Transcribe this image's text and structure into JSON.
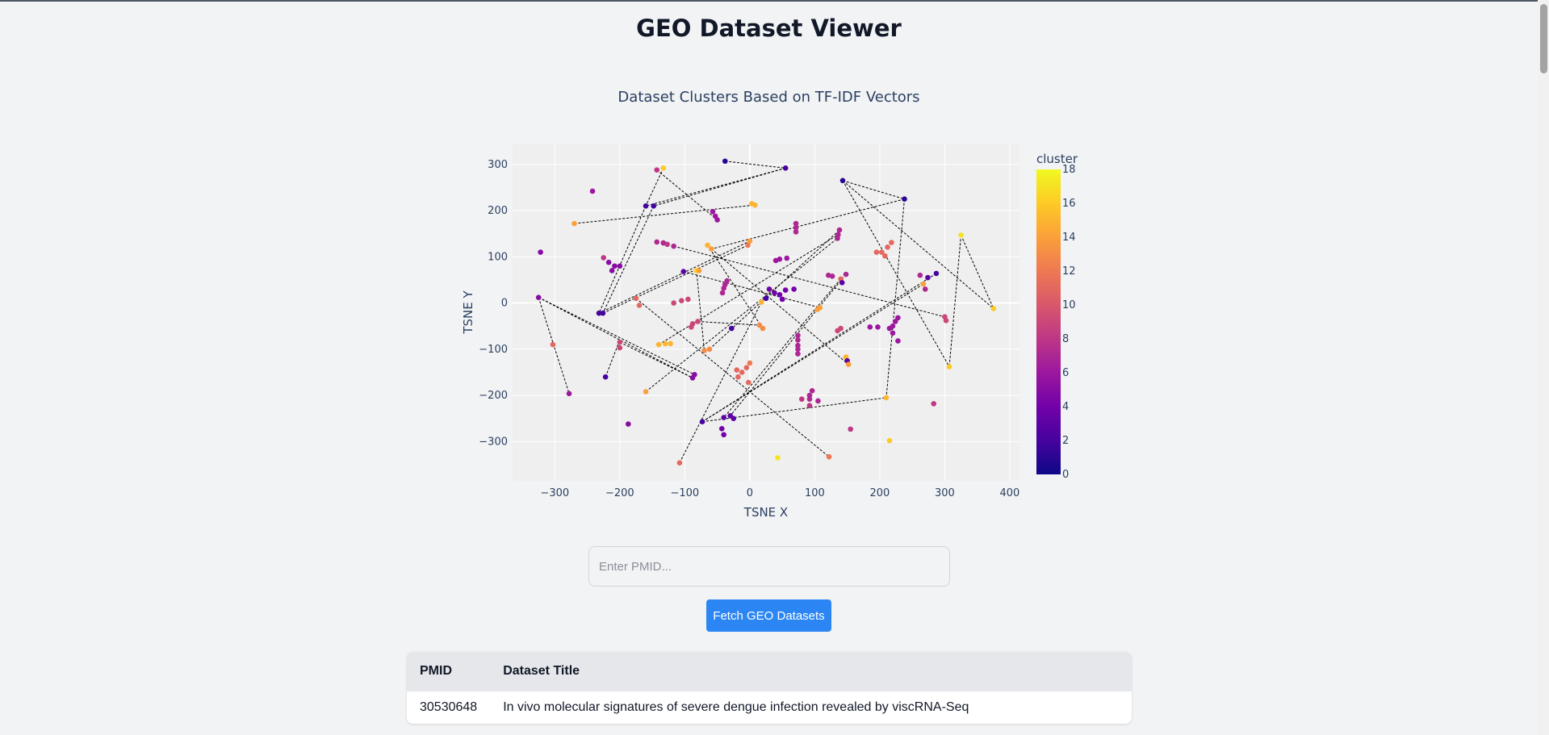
{
  "page": {
    "title": "GEO Dataset Viewer"
  },
  "search": {
    "placeholder": "Enter PMID...",
    "value": ""
  },
  "fetch_button": {
    "label": "Fetch GEO Datasets"
  },
  "table": {
    "headers": [
      "PMID",
      "Dataset Title"
    ],
    "rows": [
      {
        "pmid": "30530648",
        "title": "In vivo molecular signatures of severe dengue infection revealed by viscRNA-Seq"
      }
    ]
  },
  "chart_data": {
    "type": "scatter",
    "title": "Dataset Clusters Based on TF-IDF Vectors",
    "xlabel": "TSNE X",
    "ylabel": "TSNE Y",
    "xlim": [
      -365,
      415
    ],
    "ylim": [
      -385,
      345
    ],
    "x_ticks": [
      -300,
      -200,
      -100,
      0,
      100,
      200,
      300,
      400
    ],
    "y_ticks": [
      -300,
      -200,
      -100,
      0,
      100,
      200,
      300
    ],
    "x_tick_labels": [
      "−300",
      "−200",
      "−100",
      "0",
      "100",
      "200",
      "300",
      "400"
    ],
    "y_tick_labels": [
      "−300",
      "−200",
      "−100",
      "0",
      "100",
      "200",
      "300"
    ],
    "grid": true,
    "background": "#efefef",
    "colorbar": {
      "title": "cluster",
      "min": 0,
      "max": 18,
      "ticks": [
        0,
        2,
        4,
        6,
        8,
        10,
        12,
        14,
        16,
        18
      ],
      "colorscale": [
        "#0d0887",
        "#46039f",
        "#7201a8",
        "#9c179e",
        "#bd3786",
        "#d8576b",
        "#ed7953",
        "#fb9f3a",
        "#fdca26",
        "#f0f921"
      ]
    },
    "points": [
      {
        "x": -38,
        "y": 307,
        "c": 1
      },
      {
        "x": 55,
        "y": 292,
        "c": 2
      },
      {
        "x": -133,
        "y": 292,
        "c": 16
      },
      {
        "x": -143,
        "y": 288,
        "c": 8
      },
      {
        "x": 143,
        "y": 265,
        "c": 1
      },
      {
        "x": -242,
        "y": 242,
        "c": 6
      },
      {
        "x": 238,
        "y": 225,
        "c": 1
      },
      {
        "x": 3,
        "y": 215,
        "c": 15
      },
      {
        "x": 8,
        "y": 212,
        "c": 15
      },
      {
        "x": -160,
        "y": 210,
        "c": 2
      },
      {
        "x": -148,
        "y": 210,
        "c": 2
      },
      {
        "x": -57,
        "y": 198,
        "c": 6
      },
      {
        "x": -53,
        "y": 188,
        "c": 6
      },
      {
        "x": -50,
        "y": 180,
        "c": 6
      },
      {
        "x": -270,
        "y": 172,
        "c": 14
      },
      {
        "x": 71,
        "y": 172,
        "c": 7
      },
      {
        "x": 71,
        "y": 163,
        "c": 7
      },
      {
        "x": 71,
        "y": 154,
        "c": 7
      },
      {
        "x": 138,
        "y": 158,
        "c": 7
      },
      {
        "x": 136,
        "y": 148,
        "c": 7
      },
      {
        "x": 135,
        "y": 140,
        "c": 7
      },
      {
        "x": 325,
        "y": 147,
        "c": 17
      },
      {
        "x": -143,
        "y": 132,
        "c": 7
      },
      {
        "x": -133,
        "y": 130,
        "c": 7
      },
      {
        "x": -127,
        "y": 127,
        "c": 8
      },
      {
        "x": -117,
        "y": 123,
        "c": 7
      },
      {
        "x": 0,
        "y": 134,
        "c": 14
      },
      {
        "x": -3,
        "y": 125,
        "c": 12
      },
      {
        "x": -65,
        "y": 125,
        "c": 15
      },
      {
        "x": -59,
        "y": 117,
        "c": 14
      },
      {
        "x": 218,
        "y": 131,
        "c": 11
      },
      {
        "x": 212,
        "y": 121,
        "c": 11
      },
      {
        "x": 203,
        "y": 110,
        "c": 11
      },
      {
        "x": 208,
        "y": 102,
        "c": 11
      },
      {
        "x": 195,
        "y": 110,
        "c": 11
      },
      {
        "x": -322,
        "y": 110,
        "c": 5
      },
      {
        "x": -225,
        "y": 98,
        "c": 8
      },
      {
        "x": -217,
        "y": 88,
        "c": 5
      },
      {
        "x": -208,
        "y": 80,
        "c": 5
      },
      {
        "x": -200,
        "y": 80,
        "c": 5
      },
      {
        "x": -212,
        "y": 70,
        "c": 5
      },
      {
        "x": 57,
        "y": 97,
        "c": 6
      },
      {
        "x": 46,
        "y": 95,
        "c": 6
      },
      {
        "x": 40,
        "y": 92,
        "c": 6
      },
      {
        "x": -82,
        "y": 70,
        "c": 16
      },
      {
        "x": -78,
        "y": 70,
        "c": 14
      },
      {
        "x": -102,
        "y": 68,
        "c": 3
      },
      {
        "x": 121,
        "y": 60,
        "c": 7
      },
      {
        "x": 127,
        "y": 58,
        "c": 7
      },
      {
        "x": 148,
        "y": 62,
        "c": 7
      },
      {
        "x": 140,
        "y": 52,
        "c": 11
      },
      {
        "x": 142,
        "y": 44,
        "c": 3
      },
      {
        "x": 287,
        "y": 64,
        "c": 2
      },
      {
        "x": 274,
        "y": 55,
        "c": 3
      },
      {
        "x": 262,
        "y": 60,
        "c": 7
      },
      {
        "x": 267,
        "y": 41,
        "c": 14
      },
      {
        "x": 270,
        "y": 30,
        "c": 7
      },
      {
        "x": -35,
        "y": 48,
        "c": 7
      },
      {
        "x": -38,
        "y": 40,
        "c": 7
      },
      {
        "x": -40,
        "y": 32,
        "c": 7
      },
      {
        "x": -42,
        "y": 22,
        "c": 7
      },
      {
        "x": 30,
        "y": 30,
        "c": 4
      },
      {
        "x": 38,
        "y": 22,
        "c": 4
      },
      {
        "x": 46,
        "y": 18,
        "c": 4
      },
      {
        "x": 55,
        "y": 28,
        "c": 4
      },
      {
        "x": 68,
        "y": 30,
        "c": 4
      },
      {
        "x": 25,
        "y": 10,
        "c": 2
      },
      {
        "x": 18,
        "y": 2,
        "c": 15
      },
      {
        "x": 50,
        "y": 8,
        "c": 4
      },
      {
        "x": -325,
        "y": 12,
        "c": 5
      },
      {
        "x": -175,
        "y": 10,
        "c": 11
      },
      {
        "x": -170,
        "y": -5,
        "c": 11
      },
      {
        "x": -95,
        "y": 8,
        "c": 9
      },
      {
        "x": -105,
        "y": 5,
        "c": 9
      },
      {
        "x": -117,
        "y": 0,
        "c": 9
      },
      {
        "x": 375,
        "y": -12,
        "c": 16
      },
      {
        "x": 108,
        "y": -10,
        "c": 14
      },
      {
        "x": 104,
        "y": -14,
        "c": 14
      },
      {
        "x": -232,
        "y": -22,
        "c": 2
      },
      {
        "x": -226,
        "y": -22,
        "c": 2
      },
      {
        "x": 300,
        "y": -30,
        "c": 9
      },
      {
        "x": 302,
        "y": -38,
        "c": 9
      },
      {
        "x": 228,
        "y": -32,
        "c": 6
      },
      {
        "x": 224,
        "y": -40,
        "c": 6
      },
      {
        "x": 220,
        "y": -50,
        "c": 6
      },
      {
        "x": 215,
        "y": -55,
        "c": 6
      },
      {
        "x": 197,
        "y": -52,
        "c": 6
      },
      {
        "x": 185,
        "y": -52,
        "c": 6
      },
      {
        "x": 220,
        "y": -65,
        "c": 6
      },
      {
        "x": 228,
        "y": -82,
        "c": 6
      },
      {
        "x": -80,
        "y": -40,
        "c": 9
      },
      {
        "x": -88,
        "y": -45,
        "c": 9
      },
      {
        "x": -90,
        "y": -52,
        "c": 9
      },
      {
        "x": 15,
        "y": -48,
        "c": 13
      },
      {
        "x": 20,
        "y": -55,
        "c": 13
      },
      {
        "x": -28,
        "y": -55,
        "c": 2
      },
      {
        "x": 140,
        "y": -55,
        "c": 9
      },
      {
        "x": 135,
        "y": -60,
        "c": 9
      },
      {
        "x": 74,
        "y": -70,
        "c": 7
      },
      {
        "x": 74,
        "y": -80,
        "c": 7
      },
      {
        "x": 74,
        "y": -92,
        "c": 7
      },
      {
        "x": 74,
        "y": -100,
        "c": 7
      },
      {
        "x": 74,
        "y": -110,
        "c": 7
      },
      {
        "x": -303,
        "y": -90,
        "c": 11
      },
      {
        "x": -200,
        "y": -85,
        "c": 9
      },
      {
        "x": -200,
        "y": -97,
        "c": 9
      },
      {
        "x": -140,
        "y": -90,
        "c": 15
      },
      {
        "x": -130,
        "y": -88,
        "c": 15
      },
      {
        "x": -122,
        "y": -88,
        "c": 15
      },
      {
        "x": -70,
        "y": -103,
        "c": 13
      },
      {
        "x": -62,
        "y": -100,
        "c": 13
      },
      {
        "x": 148,
        "y": -117,
        "c": 15
      },
      {
        "x": 150,
        "y": -125,
        "c": 3
      },
      {
        "x": 152,
        "y": -133,
        "c": 14
      },
      {
        "x": 0,
        "y": -130,
        "c": 12
      },
      {
        "x": -5,
        "y": -140,
        "c": 11
      },
      {
        "x": -20,
        "y": -145,
        "c": 11
      },
      {
        "x": -12,
        "y": -150,
        "c": 11
      },
      {
        "x": -18,
        "y": -160,
        "c": 11
      },
      {
        "x": -2,
        "y": -172,
        "c": 11
      },
      {
        "x": -222,
        "y": -160,
        "c": 2
      },
      {
        "x": -85,
        "y": -155,
        "c": 5
      },
      {
        "x": -88,
        "y": -162,
        "c": 5
      },
      {
        "x": 307,
        "y": -138,
        "c": 16
      },
      {
        "x": -160,
        "y": -192,
        "c": 14
      },
      {
        "x": -278,
        "y": -196,
        "c": 6
      },
      {
        "x": 96,
        "y": -190,
        "c": 7
      },
      {
        "x": 92,
        "y": -200,
        "c": 7
      },
      {
        "x": 92,
        "y": -208,
        "c": 7
      },
      {
        "x": 105,
        "y": -212,
        "c": 7
      },
      {
        "x": 92,
        "y": -222,
        "c": 8
      },
      {
        "x": 80,
        "y": -208,
        "c": 8
      },
      {
        "x": 210,
        "y": -205,
        "c": 15
      },
      {
        "x": 283,
        "y": -218,
        "c": 8
      },
      {
        "x": -187,
        "y": -262,
        "c": 5
      },
      {
        "x": -73,
        "y": -257,
        "c": 2
      },
      {
        "x": -40,
        "y": -248,
        "c": 3
      },
      {
        "x": -30,
        "y": -244,
        "c": 3
      },
      {
        "x": -25,
        "y": -250,
        "c": 3
      },
      {
        "x": -43,
        "y": -272,
        "c": 4
      },
      {
        "x": -40,
        "y": -285,
        "c": 4
      },
      {
        "x": 155,
        "y": -273,
        "c": 8
      },
      {
        "x": 215,
        "y": -298,
        "c": 16
      },
      {
        "x": 122,
        "y": -333,
        "c": 12
      },
      {
        "x": 43,
        "y": -335,
        "c": 17
      },
      {
        "x": -108,
        "y": -346,
        "c": 11
      }
    ],
    "lines": [
      [
        -38,
        307,
        55,
        292
      ],
      [
        55,
        292,
        -160,
        210
      ],
      [
        55,
        292,
        -148,
        210
      ],
      [
        -133,
        292,
        -160,
        210
      ],
      [
        -143,
        288,
        -50,
        180
      ],
      [
        -270,
        172,
        8,
        212
      ],
      [
        -160,
        210,
        -232,
        -22
      ],
      [
        -148,
        210,
        -226,
        -22
      ],
      [
        143,
        265,
        238,
        225
      ],
      [
        143,
        265,
        375,
        -12
      ],
      [
        143,
        265,
        307,
        -138
      ],
      [
        238,
        225,
        -59,
        117
      ],
      [
        238,
        225,
        210,
        -205
      ],
      [
        325,
        147,
        375,
        -12
      ],
      [
        325,
        147,
        307,
        -138
      ],
      [
        -232,
        -22,
        0,
        134
      ],
      [
        -226,
        -22,
        -3,
        125
      ],
      [
        -65,
        125,
        20,
        -55
      ],
      [
        -59,
        117,
        152,
        -133
      ],
      [
        -325,
        12,
        -278,
        -196
      ],
      [
        -325,
        12,
        -85,
        -155
      ],
      [
        -325,
        12,
        -88,
        -162
      ],
      [
        -175,
        10,
        122,
        -333
      ],
      [
        -82,
        70,
        -70,
        -103
      ],
      [
        -102,
        68,
        108,
        -10
      ],
      [
        -117,
        123,
        300,
        -30
      ],
      [
        267,
        41,
        -73,
        -257
      ],
      [
        287,
        64,
        -73,
        -257
      ],
      [
        140,
        52,
        -40,
        -248
      ],
      [
        148,
        62,
        -30,
        -244
      ],
      [
        -160,
        -192,
        135,
        140
      ],
      [
        -108,
        -346,
        18,
        2
      ],
      [
        -140,
        -90,
        136,
        148
      ],
      [
        -62,
        -100,
        138,
        158
      ],
      [
        -73,
        -257,
        210,
        -205
      ],
      [
        -80,
        -40,
        15,
        -48
      ],
      [
        -200,
        -85,
        -88,
        -162
      ],
      [
        -222,
        -160,
        -200,
        -80
      ]
    ]
  }
}
